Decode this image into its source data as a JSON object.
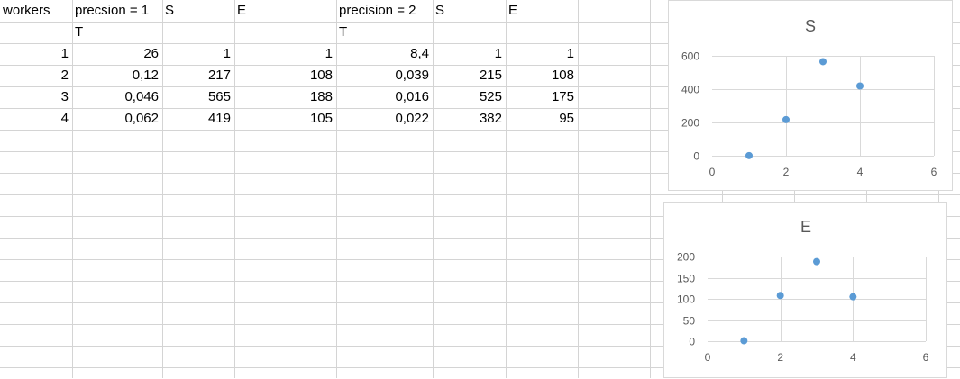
{
  "sheet": {
    "header": {
      "workers": "workers",
      "group1_label": "precsion = 1",
      "group1_s": "S",
      "group1_e": "E",
      "group2_label": "precision = 2",
      "group2_s": "S",
      "group2_e": "E"
    },
    "subheader": {
      "t1": "T",
      "t2": "T"
    },
    "rows": [
      {
        "workers": "1",
        "t1": "26",
        "s1": "1",
        "e1": "1",
        "t2": "8,4",
        "s2": "1",
        "e2": "1"
      },
      {
        "workers": "2",
        "t1": "0,12",
        "s1": "217",
        "e1": "108",
        "t2": "0,039",
        "s2": "215",
        "e2": "108"
      },
      {
        "workers": "3",
        "t1": "0,046",
        "s1": "565",
        "e1": "188",
        "t2": "0,016",
        "s2": "525",
        "e2": "175"
      },
      {
        "workers": "4",
        "t1": "0,062",
        "s1": "419",
        "e1": "105",
        "t2": "0,022",
        "s2": "382",
        "e2": "95"
      }
    ]
  },
  "colors": {
    "marker": "#5b9bd5",
    "gridline": "#d9d9d9",
    "cellgrid": "#d4d4d4",
    "axis_text": "#595959"
  },
  "chart_data": [
    {
      "type": "scatter",
      "title": "S",
      "x": [
        1,
        2,
        3,
        4
      ],
      "y": [
        1,
        217,
        565,
        419
      ],
      "xlim": [
        0,
        6
      ],
      "ylim": [
        0,
        600
      ],
      "xticks": [
        0,
        2,
        4,
        6
      ],
      "yticks": [
        0,
        200,
        400,
        600
      ],
      "grid": "horizontal",
      "legend": "none"
    },
    {
      "type": "scatter",
      "title": "E",
      "x": [
        1,
        2,
        3,
        4
      ],
      "y": [
        1,
        108,
        188,
        105
      ],
      "xlim": [
        0,
        6
      ],
      "ylim": [
        0,
        200
      ],
      "xticks": [
        0,
        2,
        4,
        6
      ],
      "yticks": [
        0,
        50,
        100,
        150,
        200
      ],
      "grid": "horizontal",
      "legend": "none"
    }
  ]
}
